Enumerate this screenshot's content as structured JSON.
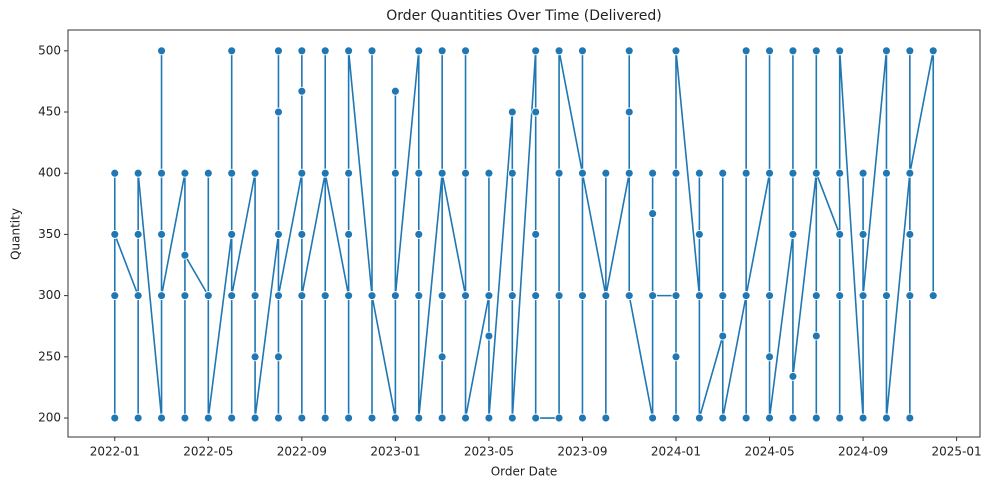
{
  "chart_data": {
    "type": "line",
    "title": "Order Quantities Over Time (Delivered)",
    "x_label": "Order Date",
    "y_label": "Quantity",
    "x": [
      "2022-01",
      "2022-01",
      "2022-01",
      "2022-01",
      "2022-01",
      "2022-01",
      "2022-01",
      "2022-02",
      "2022-02",
      "2022-02",
      "2022-02",
      "2022-02",
      "2022-02",
      "2022-02",
      "2022-03",
      "2022-03",
      "2022-03",
      "2022-03",
      "2022-03",
      "2022-03",
      "2022-03",
      "2022-04",
      "2022-04",
      "2022-04",
      "2022-04",
      "2022-04",
      "2022-04",
      "2022-04",
      "2022-05",
      "2022-05",
      "2022-05",
      "2022-05",
      "2022-05",
      "2022-05",
      "2022-05",
      "2022-06",
      "2022-06",
      "2022-06",
      "2022-06",
      "2022-06",
      "2022-06",
      "2022-06",
      "2022-07",
      "2022-07",
      "2022-07",
      "2022-07",
      "2022-07",
      "2022-07",
      "2022-07",
      "2022-08",
      "2022-08",
      "2022-08",
      "2022-08",
      "2022-08",
      "2022-08",
      "2022-08",
      "2022-09",
      "2022-09",
      "2022-09",
      "2022-09",
      "2022-09",
      "2022-09",
      "2022-09",
      "2022-10",
      "2022-10",
      "2022-10",
      "2022-10",
      "2022-10",
      "2022-10",
      "2022-10",
      "2022-11",
      "2022-11",
      "2022-11",
      "2022-11",
      "2022-11",
      "2022-11",
      "2022-11",
      "2022-12",
      "2022-12",
      "2022-12",
      "2022-12",
      "2022-12",
      "2023-01",
      "2023-01",
      "2023-01",
      "2023-01",
      "2023-01",
      "2023-02",
      "2023-02",
      "2023-02",
      "2023-02",
      "2023-02",
      "2023-02",
      "2023-03",
      "2023-03",
      "2023-03",
      "2023-03",
      "2023-03",
      "2023-03",
      "2023-04",
      "2023-04",
      "2023-04",
      "2023-04",
      "2023-04",
      "2023-04",
      "2023-04",
      "2023-05",
      "2023-05",
      "2023-05",
      "2023-05",
      "2023-05",
      "2023-05",
      "2023-05",
      "2023-06",
      "2023-06",
      "2023-06",
      "2023-06",
      "2023-06",
      "2023-06",
      "2023-06",
      "2023-07",
      "2023-07",
      "2023-07",
      "2023-07",
      "2023-07",
      "2023-07",
      "2023-07",
      "2023-08",
      "2023-08",
      "2023-08",
      "2023-08",
      "2023-08",
      "2023-08",
      "2023-09",
      "2023-09",
      "2023-09",
      "2023-09",
      "2023-09",
      "2023-09",
      "2023-09",
      "2023-10",
      "2023-10",
      "2023-10",
      "2023-10",
      "2023-10",
      "2023-10",
      "2023-11",
      "2023-11",
      "2023-11",
      "2023-11",
      "2023-11",
      "2023-11",
      "2023-12",
      "2023-12",
      "2023-12",
      "2023-12",
      "2023-12",
      "2023-12",
      "2024-01",
      "2024-01",
      "2024-01",
      "2024-01",
      "2024-01",
      "2024-01",
      "2024-01",
      "2024-02",
      "2024-02",
      "2024-02",
      "2024-02",
      "2024-02",
      "2024-03",
      "2024-03",
      "2024-03",
      "2024-03",
      "2024-03",
      "2024-04",
      "2024-04",
      "2024-04",
      "2024-04",
      "2024-04",
      "2024-04",
      "2024-05",
      "2024-05",
      "2024-05",
      "2024-05",
      "2024-05",
      "2024-05",
      "2024-06",
      "2024-06",
      "2024-06",
      "2024-06",
      "2024-06",
      "2024-06",
      "2024-07",
      "2024-07",
      "2024-07",
      "2024-07",
      "2024-07",
      "2024-07",
      "2024-07",
      "2024-08",
      "2024-08",
      "2024-08",
      "2024-08",
      "2024-08",
      "2024-08",
      "2024-08",
      "2024-09",
      "2024-09",
      "2024-09",
      "2024-09",
      "2024-09",
      "2024-09",
      "2024-10",
      "2024-10",
      "2024-10",
      "2024-10",
      "2024-10",
      "2024-11",
      "2024-11",
      "2024-11",
      "2024-11",
      "2024-11",
      "2024-11",
      "2024-11",
      "2024-12",
      "2024-12",
      "2024-12"
    ],
    "series": [
      {
        "name": "Quantity",
        "color": "#1f77b4",
        "values": [
          200,
          200,
          350,
          400,
          300,
          400,
          350,
          300,
          400,
          200,
          400,
          200,
          350,
          400,
          200,
          400,
          400,
          200,
          350,
          500,
          300,
          400,
          200,
          300,
          400,
          300,
          300,
          333,
          300,
          400,
          200,
          300,
          200,
          400,
          200,
          350,
          300,
          200,
          400,
          200,
          500,
          300,
          400,
          300,
          400,
          200,
          250,
          400,
          200,
          350,
          450,
          250,
          500,
          200,
          200,
          300,
          400,
          350,
          200,
          467,
          300,
          500,
          300,
          400,
          500,
          300,
          400,
          300,
          200,
          400,
          300,
          400,
          200,
          400,
          350,
          400,
          500,
          300,
          200,
          300,
          500,
          300,
          200,
          400,
          200,
          467,
          300,
          500,
          300,
          400,
          350,
          500,
          200,
          400,
          200,
          300,
          500,
          250,
          400,
          300,
          200,
          500,
          300,
          200,
          400,
          200,
          300,
          200,
          300,
          400,
          200,
          267,
          200,
          450,
          300,
          200,
          300,
          400,
          300,
          200,
          500,
          200,
          450,
          300,
          300,
          350,
          200,
          200,
          400,
          300,
          400,
          400,
          500,
          400,
          500,
          400,
          300,
          200,
          200,
          400,
          300,
          400,
          300,
          200,
          400,
          300,
          400,
          500,
          300,
          450,
          500,
          300,
          200,
          367,
          200,
          400,
          200,
          300,
          300,
          400,
          250,
          400,
          500,
          200,
          500,
          300,
          200,
          400,
          350,
          200,
          267,
          300,
          200,
          400,
          200,
          300,
          200,
          400,
          500,
          400,
          300,
          400,
          300,
          250,
          300,
          500,
          200,
          350,
          500,
          200,
          400,
          500,
          234,
          400,
          200,
          267,
          300,
          500,
          200,
          400,
          350,
          300,
          400,
          300,
          200,
          500,
          500,
          200,
          300,
          400,
          350,
          200,
          300,
          500,
          200,
          400,
          300,
          200,
          400,
          200,
          400,
          350,
          300,
          500,
          400,
          500,
          500,
          300
        ]
      }
    ],
    "xlim": [
      "2021-11",
      "2025-02"
    ],
    "xticks": [
      "2022-01",
      "2022-05",
      "2022-09",
      "2023-01",
      "2023-05",
      "2023-09",
      "2024-01",
      "2024-05",
      "2024-09",
      "2025-01"
    ],
    "ylim": [
      184.5,
      517
    ],
    "yticks": [
      200,
      250,
      300,
      350,
      400,
      450,
      500
    ],
    "grid": false
  }
}
